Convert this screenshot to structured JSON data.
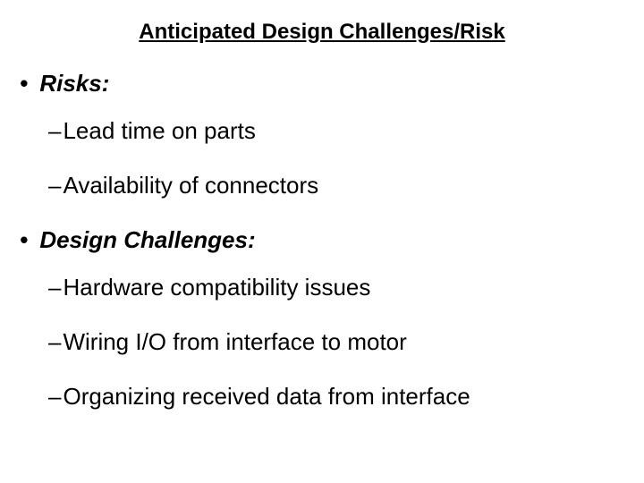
{
  "title": "Anticipated Design Challenges/Risk",
  "sections": [
    {
      "heading": "Risks:",
      "items": [
        "Lead time on parts",
        "Availability of connectors"
      ]
    },
    {
      "heading": "Design Challenges:",
      "items": [
        "Hardware compatibility issues",
        "Wiring I/O from interface to motor",
        "Organizing received data from interface"
      ]
    }
  ],
  "style": {
    "background_color": "#ffffff",
    "text_color": "#000000",
    "title_fontsize": 24,
    "body_fontsize": 26,
    "font_family": "Arial"
  }
}
